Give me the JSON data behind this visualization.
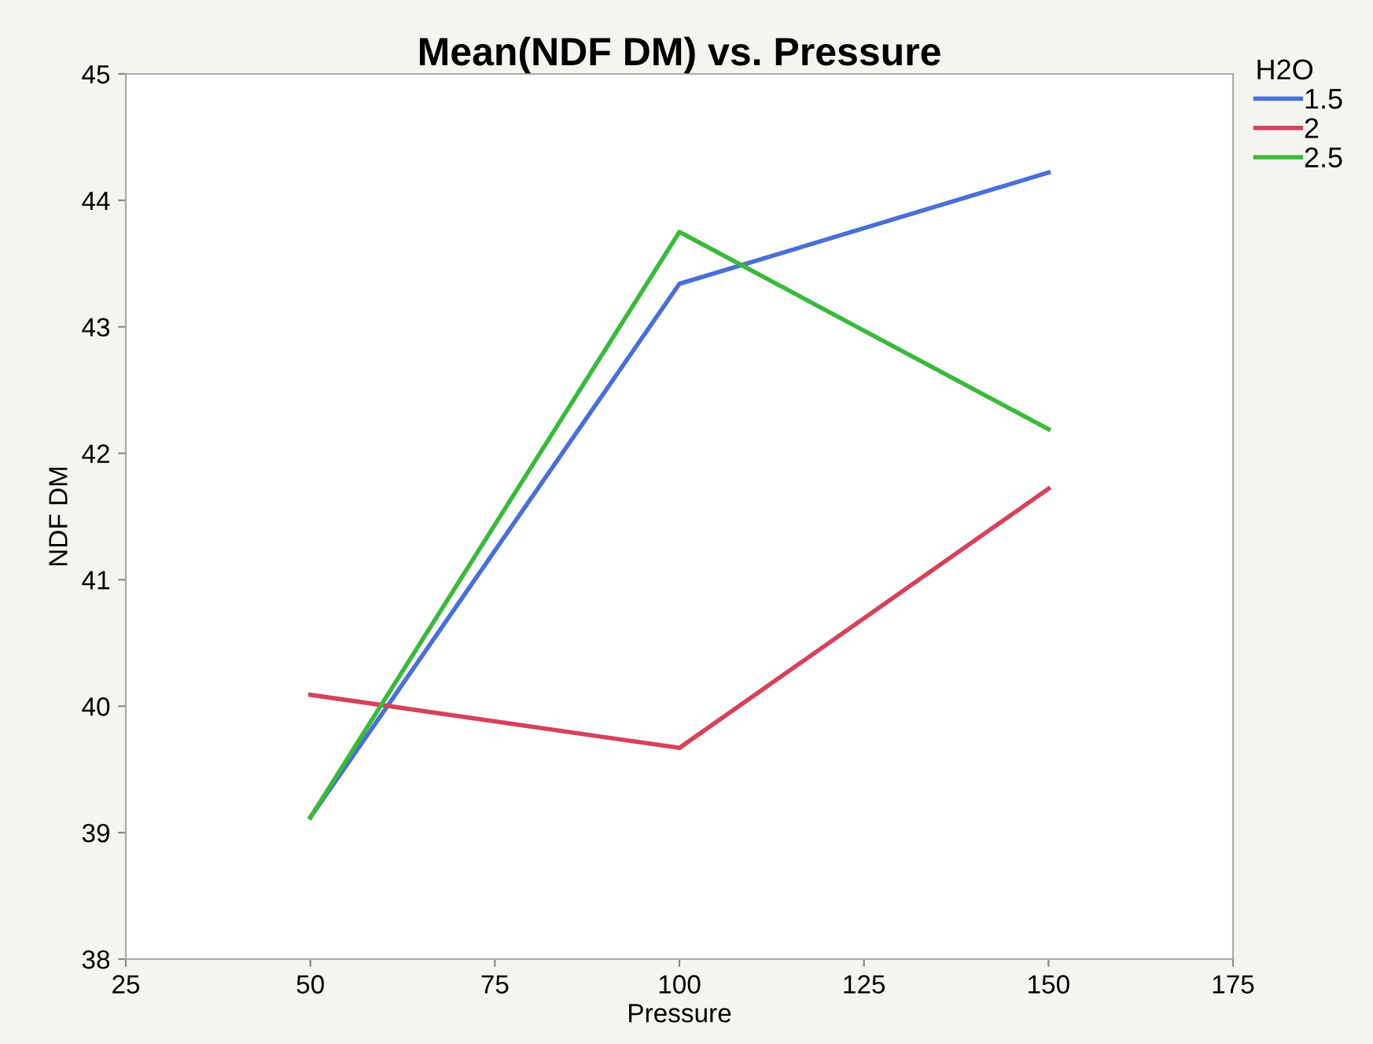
{
  "chart_data": {
    "type": "line",
    "title": "Mean(NDF DM) vs. Pressure",
    "xlabel": "Pressure",
    "ylabel": "NDF DM",
    "legend_title": "H2O",
    "x": [
      50,
      100,
      150
    ],
    "series": [
      {
        "name": "1.5",
        "color": "#4a6fd8",
        "values": [
          39.12,
          43.34,
          44.22
        ]
      },
      {
        "name": "2",
        "color": "#d6425b",
        "values": [
          40.09,
          39.67,
          41.72
        ]
      },
      {
        "name": "2.5",
        "color": "#3cb93c",
        "values": [
          39.12,
          43.75,
          42.19
        ]
      }
    ],
    "xlim": [
      25,
      175
    ],
    "xticks": [
      25,
      50,
      75,
      100,
      125,
      150,
      175
    ],
    "ylim": [
      38,
      45
    ],
    "yticks": [
      38,
      39,
      40,
      41,
      42,
      43,
      44,
      45
    ],
    "grid": false,
    "legend": "right",
    "marker": "none",
    "line_style": "solid"
  }
}
